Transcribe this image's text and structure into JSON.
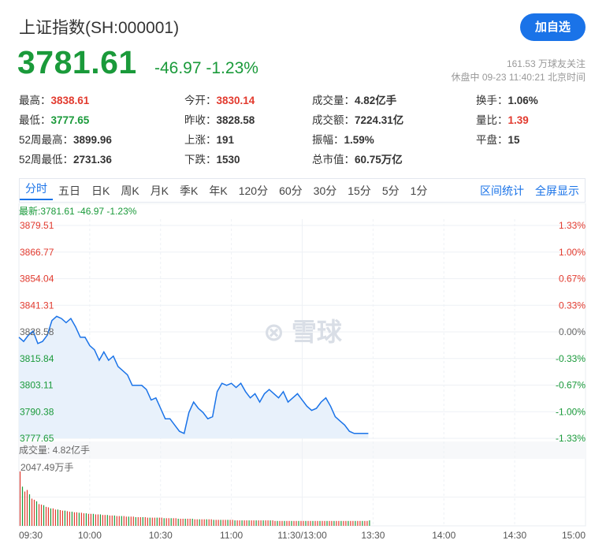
{
  "header": {
    "title": "上证指数(SH:000001)",
    "follow_button": "加自选",
    "price": "3781.61",
    "change": "-46.97 -1.23%",
    "followers": "161.53 万球友关注",
    "status": "休盘中 09-23 11:40:21 北京时间"
  },
  "stats": [
    {
      "label": "最高：",
      "value": "3838.61",
      "color": "red"
    },
    {
      "label": "今开：",
      "value": "3830.14",
      "color": "red"
    },
    {
      "label": "成交量：",
      "value": "4.82亿手",
      "color": ""
    },
    {
      "label": "换手：",
      "value": "1.06%",
      "color": ""
    },
    {
      "label": "最低：",
      "value": "3777.65",
      "color": "green"
    },
    {
      "label": "昨收：",
      "value": "3828.58",
      "color": ""
    },
    {
      "label": "成交额：",
      "value": "7224.31亿",
      "color": ""
    },
    {
      "label": "量比：",
      "value": "1.39",
      "color": "red"
    },
    {
      "label": "52周最高：",
      "value": "3899.96",
      "color": ""
    },
    {
      "label": "上涨：",
      "value": "191",
      "color": ""
    },
    {
      "label": "振幅：",
      "value": "1.59%",
      "color": ""
    },
    {
      "label": "平盘：",
      "value": "15",
      "color": ""
    },
    {
      "label": "52周最低：",
      "value": "2731.36",
      "color": ""
    },
    {
      "label": "下跌：",
      "value": "1530",
      "color": ""
    },
    {
      "label": "总市值：",
      "value": "60.75万亿",
      "color": ""
    }
  ],
  "tabs": [
    "分时",
    "五日",
    "日K",
    "周K",
    "月K",
    "季K",
    "年K",
    "120分",
    "60分",
    "30分",
    "15分",
    "5分",
    "1分"
  ],
  "active_tab": "分时",
  "tab_links": [
    "区间统计",
    "全屏显示"
  ],
  "colors": {
    "up": "#e23a2e",
    "down": "#1a9a3a",
    "accent": "#1a73e8",
    "line": "#1a73e8"
  },
  "watermark": "雪球",
  "chart_data": {
    "type": "line",
    "legend": "最新:3781.61 -46.97 -1.23%",
    "price_ticks": [
      "3879.51",
      "3866.77",
      "3854.04",
      "3841.31",
      "3828.58",
      "3815.84",
      "3803.11",
      "3790.38",
      "3777.65"
    ],
    "pct_ticks": [
      "1.33%",
      "1.00%",
      "0.67%",
      "0.33%",
      "0.00%",
      "-0.33%",
      "-0.67%",
      "-1.00%",
      "-1.33%"
    ],
    "ylim": [
      3777.65,
      3879.51
    ],
    "prev_close": 3828.58,
    "volume_label": "成交量: 4.82亿手",
    "volume_max_label": "2047.49万手",
    "time_ticks": [
      "09:30",
      "10:00",
      "10:30",
      "11:00",
      "11:30/13:00",
      "13:30",
      "14:00",
      "14:30",
      "15:00"
    ],
    "total_minutes": 240,
    "price_series": [
      [
        0,
        3826
      ],
      [
        2,
        3824
      ],
      [
        4,
        3827
      ],
      [
        6,
        3829
      ],
      [
        8,
        3823
      ],
      [
        10,
        3824
      ],
      [
        12,
        3827
      ],
      [
        14,
        3834
      ],
      [
        16,
        3836
      ],
      [
        18,
        3835
      ],
      [
        20,
        3833
      ],
      [
        22,
        3835
      ],
      [
        24,
        3831
      ],
      [
        26,
        3826
      ],
      [
        28,
        3826
      ],
      [
        30,
        3822
      ],
      [
        32,
        3820
      ],
      [
        34,
        3815
      ],
      [
        36,
        3819
      ],
      [
        38,
        3815
      ],
      [
        40,
        3817
      ],
      [
        42,
        3812
      ],
      [
        44,
        3810
      ],
      [
        46,
        3808
      ],
      [
        48,
        3803
      ],
      [
        50,
        3803
      ],
      [
        52,
        3803
      ],
      [
        54,
        3801
      ],
      [
        56,
        3796
      ],
      [
        58,
        3797
      ],
      [
        60,
        3792
      ],
      [
        62,
        3787
      ],
      [
        64,
        3787
      ],
      [
        66,
        3784
      ],
      [
        68,
        3781
      ],
      [
        70,
        3780
      ],
      [
        72,
        3790
      ],
      [
        74,
        3795
      ],
      [
        76,
        3792
      ],
      [
        78,
        3790
      ],
      [
        80,
        3787
      ],
      [
        82,
        3788
      ],
      [
        84,
        3800
      ],
      [
        86,
        3804
      ],
      [
        88,
        3803
      ],
      [
        90,
        3804
      ],
      [
        92,
        3802
      ],
      [
        94,
        3804
      ],
      [
        96,
        3800
      ],
      [
        98,
        3797
      ],
      [
        100,
        3799
      ],
      [
        102,
        3795
      ],
      [
        104,
        3799
      ],
      [
        106,
        3801
      ],
      [
        108,
        3799
      ],
      [
        110,
        3797
      ],
      [
        112,
        3800
      ],
      [
        114,
        3795
      ],
      [
        116,
        3797
      ],
      [
        118,
        3799
      ],
      [
        120,
        3796
      ],
      [
        122,
        3793
      ],
      [
        124,
        3791
      ],
      [
        126,
        3792
      ],
      [
        128,
        3795
      ],
      [
        130,
        3797
      ],
      [
        132,
        3793
      ],
      [
        134,
        3788
      ],
      [
        136,
        3786
      ],
      [
        138,
        3784
      ],
      [
        140,
        3781
      ],
      [
        142,
        3780
      ],
      [
        144,
        3780
      ],
      [
        146,
        3780
      ],
      [
        148,
        3780
      ]
    ],
    "volume_series": [
      100,
      72,
      63,
      66,
      58,
      50,
      48,
      45,
      40,
      39,
      38,
      35,
      34,
      32,
      32,
      30,
      30,
      29,
      28,
      28,
      27,
      26,
      26,
      25,
      25,
      24,
      24,
      23,
      23,
      22,
      22,
      22,
      21,
      21,
      21,
      20,
      20,
      20,
      19,
      19,
      19,
      18,
      18,
      18,
      18,
      17,
      17,
      17,
      17,
      16,
      16,
      16,
      16,
      16,
      15,
      15,
      15,
      15,
      15,
      15,
      15,
      14,
      14,
      14,
      14,
      14,
      14,
      13,
      13,
      13,
      13,
      13,
      13,
      13,
      12,
      12,
      12,
      12,
      12,
      12,
      12,
      12,
      11,
      11,
      11,
      11,
      11,
      11,
      11,
      11,
      11,
      10,
      10,
      10,
      10,
      10,
      10,
      10,
      10,
      10,
      10,
      10,
      10,
      10,
      10,
      10,
      10,
      10,
      9,
      9,
      9,
      9,
      9,
      9,
      9,
      9,
      9,
      9,
      9,
      9,
      9,
      9,
      9,
      9,
      9,
      9,
      9,
      9,
      9,
      9,
      9,
      9,
      9,
      9,
      9,
      9,
      9,
      9,
      9,
      9,
      9,
      9,
      9,
      9,
      9,
      9,
      9,
      9,
      10
    ],
    "volume_direction": "mixed"
  }
}
